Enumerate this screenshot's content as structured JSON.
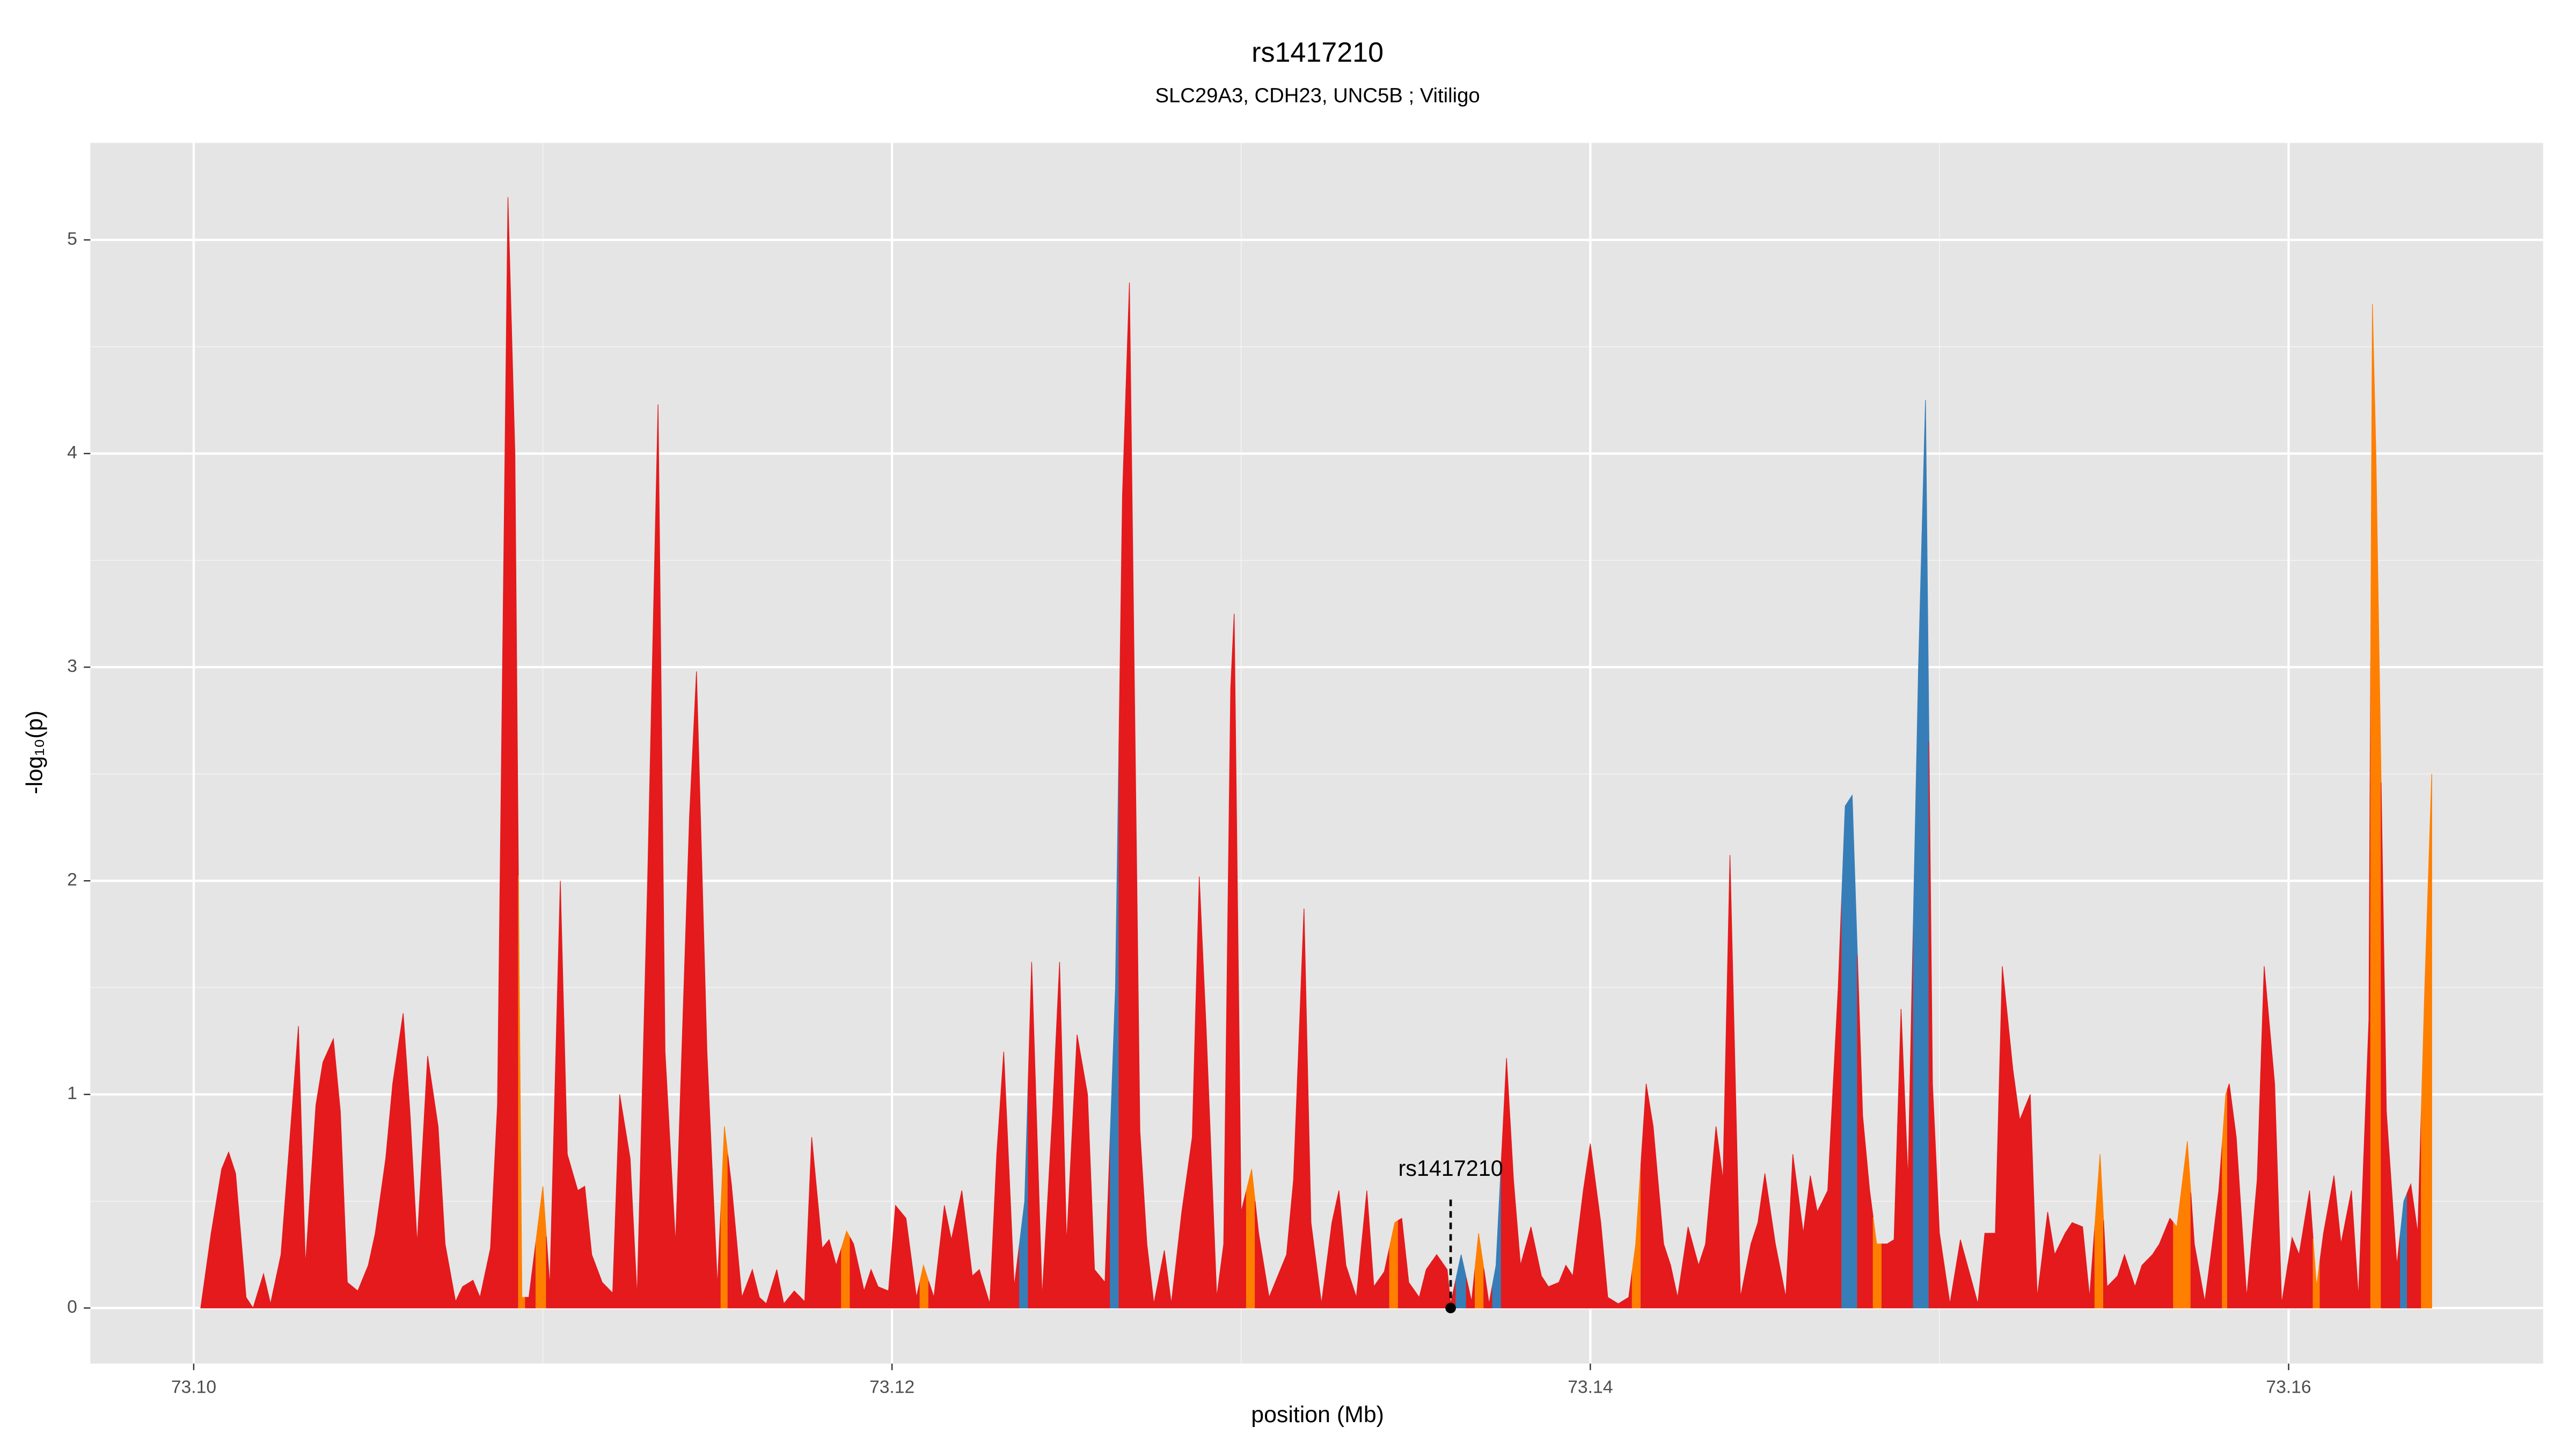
{
  "chart_data": {
    "type": "area",
    "title": "rs1417210",
    "subtitle": "SLC29A3, CDH23, UNC5B ; Vitiligo",
    "xlabel": "position (Mb)",
    "ylabel": "-log₁₀(p)",
    "xlim": [
      73.09704,
      73.16729
    ],
    "ylim": [
      -0.26,
      5.454
    ],
    "xticks": [
      {
        "value": 73.1,
        "label": "73.10"
      },
      73.12,
      73.14,
      73.16
    ],
    "yticks": [
      0,
      1,
      2,
      3,
      4,
      5
    ],
    "grid": true,
    "minor_grid": true,
    "x": [
      73.1002,
      73.1005,
      73.1008,
      73.101,
      73.1012,
      73.1015,
      73.1017,
      73.102,
      73.1022,
      73.1025,
      73.103,
      73.1032,
      73.1035,
      73.1037,
      73.104,
      73.1042,
      73.1044,
      73.1047,
      73.105,
      73.1052,
      73.1055,
      73.1057,
      73.106,
      73.1062,
      73.1064,
      73.1067,
      73.107,
      73.1072,
      73.1075,
      73.1077,
      73.108,
      73.1082,
      73.1085,
      73.1087,
      73.109,
      73.1092,
      73.1094,
      73.1096,
      73.11,
      73.1102,
      73.1105,
      73.1107,
      73.111,
      73.1112,
      73.1114,
      73.1117,
      73.112,
      73.1122,
      73.1125,
      73.1127,
      73.113,
      73.1133,
      73.1135,
      73.1138,
      73.1142,
      73.1144,
      73.1147,
      73.115,
      73.1152,
      73.1154,
      73.1157,
      73.116,
      73.1162,
      73.1164,
      73.1167,
      73.1169,
      73.1172,
      73.1175,
      73.1177,
      73.118,
      73.1182,
      73.1184,
      73.1187,
      73.1189,
      73.1192,
      73.1194,
      73.1196,
      73.1199,
      73.1201,
      73.1204,
      73.1207,
      73.1209,
      73.1212,
      73.1215,
      73.1217,
      73.122,
      73.1223,
      73.1225,
      73.1228,
      73.123,
      73.1232,
      73.1235,
      73.1238,
      73.124,
      73.1243,
      73.1246,
      73.1248,
      73.125,
      73.1253,
      73.1256,
      73.1258,
      73.1261,
      73.1264,
      73.1266,
      73.1268,
      73.1271,
      73.1273,
      73.1275,
      73.1278,
      73.128,
      73.1283,
      73.1286,
      73.1288,
      73.129,
      73.1293,
      73.1295,
      73.1297,
      73.1298,
      73.13,
      73.1303,
      73.1305,
      73.1308,
      73.1311,
      73.1313,
      73.1315,
      73.1318,
      73.132,
      73.1323,
      73.1326,
      73.1328,
      73.133,
      73.1333,
      73.1336,
      73.1338,
      73.1341,
      73.1344,
      73.1346,
      73.1348,
      73.1351,
      73.1353,
      73.1356,
      73.1359,
      73.136,
      73.1363,
      73.1366,
      73.1368,
      73.1371,
      73.1373,
      73.1376,
      73.1378,
      73.138,
      73.1383,
      73.1386,
      73.1388,
      73.1391,
      73.1393,
      73.1395,
      73.1398,
      73.14,
      73.1403,
      73.1405,
      73.1408,
      73.1411,
      73.1413,
      73.1416,
      73.1418,
      73.1421,
      73.1423,
      73.1425,
      73.1428,
      73.1431,
      73.1433,
      73.1436,
      73.1438,
      73.144,
      73.1443,
      73.1446,
      73.1448,
      73.145,
      73.1453,
      73.1456,
      73.1458,
      73.1461,
      73.1463,
      73.1465,
      73.1468,
      73.1471,
      73.1473,
      73.1475,
      73.1478,
      73.148,
      73.1482,
      73.1485,
      73.1487,
      73.1489,
      73.1491,
      73.1494,
      73.1496,
      73.1498,
      73.15,
      73.1503,
      73.1506,
      73.1508,
      73.1511,
      73.1513,
      73.1516,
      73.1518,
      73.1521,
      73.1523,
      73.1526,
      73.1528,
      73.1531,
      73.1533,
      73.1536,
      73.1538,
      73.1541,
      73.1543,
      73.1546,
      73.1548,
      73.1551,
      73.1553,
      73.1556,
      73.1558,
      73.1561,
      73.1563,
      73.1566,
      73.1568,
      73.1571,
      73.1573,
      73.1576,
      73.1578,
      73.158,
      73.1582,
      73.1583,
      73.1585,
      73.1588,
      73.1591,
      73.1593,
      73.1596,
      73.1598,
      73.1601,
      73.1603,
      73.1606,
      73.1608,
      73.161,
      73.1613,
      73.1615,
      73.1618,
      73.162,
      73.1623,
      73.1624,
      73.1625,
      73.1628,
      73.1631,
      73.1633,
      73.1635,
      73.1637,
      73.1639,
      73.1641
    ],
    "values": [
      0,
      0.35,
      0.65,
      0.73,
      0.63,
      0.05,
      0,
      0.16,
      0.02,
      0.25,
      1.32,
      0.2,
      0.95,
      1.15,
      1.26,
      0.92,
      0.12,
      0.08,
      0.2,
      0.35,
      0.7,
      1.05,
      1.38,
      0.9,
      0.3,
      1.18,
      0.85,
      0.3,
      0.03,
      0.1,
      0.13,
      0.05,
      0.28,
      0.95,
      5.2,
      4.0,
      0.05,
      0.05,
      0.57,
      0.1,
      2.0,
      0.72,
      0.55,
      0.57,
      0.25,
      0.12,
      0.07,
      1.0,
      0.7,
      0.05,
      2.0,
      4.23,
      1.2,
      0.3,
      2.3,
      2.98,
      1.2,
      0.1,
      0.85,
      0.58,
      0.05,
      0.18,
      0.05,
      0.02,
      0.18,
      0.02,
      0.08,
      0.03,
      0.8,
      0.28,
      0.32,
      0.2,
      0.36,
      0.3,
      0.08,
      0.18,
      0.1,
      0.08,
      0.48,
      0.42,
      0.05,
      0.2,
      0.05,
      0.48,
      0.32,
      0.55,
      0.15,
      0.18,
      0.02,
      0.72,
      1.2,
      0.1,
      0.5,
      1.62,
      0.05,
      0.92,
      1.62,
      0.3,
      1.28,
      1.0,
      0.18,
      0.12,
      1.5,
      3.8,
      4.8,
      0.83,
      0.3,
      0.02,
      0.27,
      0.02,
      0.45,
      0.8,
      2.02,
      1.3,
      0.05,
      0.3,
      2.9,
      3.25,
      0.45,
      0.65,
      0.35,
      0.05,
      0.17,
      0.25,
      0.6,
      1.87,
      0.4,
      0.02,
      0.4,
      0.55,
      0.2,
      0.05,
      0.55,
      0.1,
      0.17,
      0.4,
      0.42,
      0.12,
      0.05,
      0.18,
      0.25,
      0.18,
      0.02,
      0.25,
      0.03,
      0.35,
      0.02,
      0.2,
      1.17,
      0.6,
      0.2,
      0.38,
      0.15,
      0.1,
      0.12,
      0.2,
      0.15,
      0.55,
      0.77,
      0.4,
      0.05,
      0.02,
      0.05,
      0.3,
      1.05,
      0.85,
      0.3,
      0.2,
      0.05,
      0.38,
      0.2,
      0.3,
      0.85,
      0.6,
      2.12,
      0.05,
      0.3,
      0.4,
      0.63,
      0.3,
      0.05,
      0.72,
      0.35,
      0.62,
      0.45,
      0.55,
      1.5,
      2.35,
      2.4,
      0.9,
      0.55,
      0.3,
      0.3,
      0.32,
      1.4,
      0.6,
      3.0,
      4.25,
      1.05,
      0.35,
      0.02,
      0.32,
      0.2,
      0.02,
      0.35,
      0.35,
      1.6,
      1.12,
      0.88,
      1.0,
      0.05,
      0.45,
      0.25,
      0.35,
      0.4,
      0.38,
      0.05,
      0.72,
      0.1,
      0.15,
      0.25,
      0.1,
      0.2,
      0.25,
      0.3,
      0.42,
      0.38,
      0.78,
      0.3,
      0.03,
      0.28,
      0.55,
      1.0,
      1.05,
      0.8,
      0.05,
      0.6,
      1.6,
      1.05,
      0.02,
      0.33,
      0.25,
      0.55,
      0.1,
      0.35,
      0.62,
      0.3,
      0.55,
      0.05,
      1.35,
      4.7,
      4.0,
      0.92,
      0.2,
      0.5,
      0.58,
      0.35,
      1.5,
      2.5
    ],
    "colors": [
      "#e41a1c",
      "#e41a1c",
      "#e41a1c",
      "#e41a1c",
      "#e41a1c",
      "#e41a1c",
      "#e41a1c",
      "#e41a1c",
      "#e41a1c",
      "#e41a1c",
      "#e41a1c",
      "#e41a1c",
      "#e41a1c",
      "#e41a1c",
      "#e41a1c",
      "#e41a1c",
      "#e41a1c",
      "#e41a1c",
      "#e41a1c",
      "#e41a1c",
      "#e41a1c",
      "#e41a1c",
      "#e41a1c",
      "#e41a1c",
      "#e41a1c",
      "#e41a1c",
      "#e41a1c",
      "#e41a1c",
      "#e41a1c",
      "#e41a1c",
      "#e41a1c",
      "#e41a1c",
      "#e41a1c",
      "#e41a1c",
      "#e41a1c",
      "#e41a1c",
      "#ff7f00",
      "#e41a1c",
      "#ff7f00",
      "#e41a1c",
      "#e41a1c",
      "#e41a1c",
      "#e41a1c",
      "#e41a1c",
      "#e41a1c",
      "#e41a1c",
      "#e41a1c",
      "#e41a1c",
      "#e41a1c",
      "#e41a1c",
      "#e41a1c",
      "#e41a1c",
      "#e41a1c",
      "#e41a1c",
      "#e41a1c",
      "#e41a1c",
      "#e41a1c",
      "#e41a1c",
      "#ff7f00",
      "#e41a1c",
      "#e41a1c",
      "#e41a1c",
      "#e41a1c",
      "#e41a1c",
      "#e41a1c",
      "#e41a1c",
      "#e41a1c",
      "#e41a1c",
      "#e41a1c",
      "#e41a1c",
      "#e41a1c",
      "#e41a1c",
      "#ff7f00",
      "#e41a1c",
      "#e41a1c",
      "#e41a1c",
      "#e41a1c",
      "#e41a1c",
      "#e41a1c",
      "#e41a1c",
      "#e41a1c",
      "#ff7f00",
      "#e41a1c",
      "#e41a1c",
      "#e41a1c",
      "#e41a1c",
      "#e41a1c",
      "#e41a1c",
      "#e41a1c",
      "#e41a1c",
      "#e41a1c",
      "#e41a1c",
      "#377eb8",
      "#e41a1c",
      "#e41a1c",
      "#e41a1c",
      "#e41a1c",
      "#e41a1c",
      "#e41a1c",
      "#e41a1c",
      "#e41a1c",
      "#e41a1c",
      "#377eb8",
      "#e41a1c",
      "#e41a1c",
      "#e41a1c",
      "#e41a1c",
      "#e41a1c",
      "#e41a1c",
      "#e41a1c",
      "#e41a1c",
      "#e41a1c",
      "#e41a1c",
      "#e41a1c",
      "#e41a1c",
      "#e41a1c",
      "#e41a1c",
      "#e41a1c",
      "#e41a1c",
      "#ff7f00",
      "#e41a1c",
      "#e41a1c",
      "#e41a1c",
      "#e41a1c",
      "#e41a1c",
      "#e41a1c",
      "#e41a1c",
      "#e41a1c",
      "#e41a1c",
      "#e41a1c",
      "#e41a1c",
      "#e41a1c",
      "#e41a1c",
      "#e41a1c",
      "#e41a1c",
      "#ff7f00",
      "#e41a1c",
      "#e41a1c",
      "#e41a1c",
      "#e41a1c",
      "#e41a1c",
      "#e41a1c",
      "#e41a1c",
      "#377eb8",
      "#e41a1c",
      "#ff7f00",
      "#e41a1c",
      "#377eb8",
      "#e41a1c",
      "#e41a1c",
      "#e41a1c",
      "#e41a1c",
      "#e41a1c",
      "#e41a1c",
      "#e41a1c",
      "#e41a1c",
      "#e41a1c",
      "#e41a1c",
      "#e41a1c",
      "#e41a1c",
      "#e41a1c",
      "#e41a1c",
      "#e41a1c",
      "#ff7f00",
      "#e41a1c",
      "#e41a1c",
      "#e41a1c",
      "#e41a1c",
      "#e41a1c",
      "#e41a1c",
      "#e41a1c",
      "#e41a1c",
      "#e41a1c",
      "#e41a1c",
      "#e41a1c",
      "#e41a1c",
      "#e41a1c",
      "#e41a1c",
      "#e41a1c",
      "#e41a1c",
      "#e41a1c",
      "#e41a1c",
      "#e41a1c",
      "#e41a1c",
      "#e41a1c",
      "#e41a1c",
      "#e41a1c",
      "#377eb8",
      "#377eb8",
      "#e41a1c",
      "#e41a1c",
      "#ff7f00",
      "#e41a1c",
      "#e41a1c",
      "#e41a1c",
      "#e41a1c",
      "#377eb8",
      "#377eb8",
      "#e41a1c",
      "#e41a1c",
      "#e41a1c",
      "#e41a1c",
      "#e41a1c",
      "#e41a1c",
      "#e41a1c",
      "#e41a1c",
      "#e41a1c",
      "#e41a1c",
      "#e41a1c",
      "#e41a1c",
      "#e41a1c",
      "#e41a1c",
      "#e41a1c",
      "#e41a1c",
      "#e41a1c",
      "#e41a1c",
      "#e41a1c",
      "#ff7f00",
      "#e41a1c",
      "#e41a1c",
      "#e41a1c",
      "#e41a1c",
      "#e41a1c",
      "#e41a1c",
      "#e41a1c",
      "#e41a1c",
      "#ff7f00",
      "#ff7f00",
      "#e41a1c",
      "#e41a1c",
      "#e41a1c",
      "#e41a1c",
      "#ff7f00",
      "#e41a1c",
      "#e41a1c",
      "#e41a1c",
      "#e41a1c",
      "#e41a1c",
      "#e41a1c",
      "#e41a1c",
      "#e41a1c",
      "#e41a1c",
      "#e41a1c",
      "#ff7f00",
      "#e41a1c",
      "#e41a1c",
      "#e41a1c",
      "#e41a1c",
      "#e41a1c",
      "#e41a1c",
      "#ff7f00",
      "#ff7f00",
      "#e41a1c",
      "#e41a1c",
      "#377eb8",
      "#e41a1c",
      "#e41a1c",
      "#ff7f00",
      "#ff7f00"
    ],
    "annotation": {
      "text": "rs1417210",
      "x": 73.136,
      "y": 0
    }
  }
}
